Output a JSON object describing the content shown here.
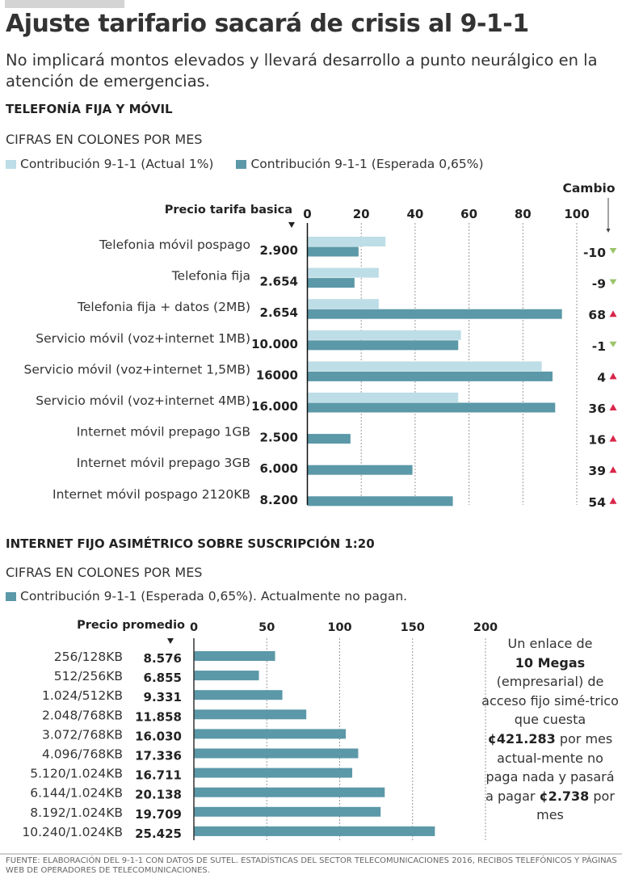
{
  "header": {
    "title": "Ajuste tarifario sacará de crisis al 9-1-1",
    "subtitle": "No implicará montos elevados y llevará desarrollo a punto neurálgico en la atención de emergencias."
  },
  "colors": {
    "actual": "#bddde7",
    "expected": "#5b98a8",
    "up": "#d9264a",
    "down": "#9cc46a"
  },
  "chart_data": [
    {
      "type": "bar",
      "title": "TELEFONÍA FIJA Y MÓVIL",
      "subtitle": "CIFRAS EN COLONES POR MES",
      "price_header": "Precio tarifa basica",
      "change_header": "Cambio",
      "xlim": [
        0,
        100
      ],
      "xticks": [
        "0",
        "20",
        "40",
        "60",
        "80",
        "100"
      ],
      "grid": true,
      "legend_position": "top-left",
      "series": [
        {
          "name": "Contribución 9-1-1 (Actual 1%)",
          "values": [
            29,
            26.5,
            26.5,
            57,
            87,
            56,
            null,
            null,
            null
          ]
        },
        {
          "name": "Contribución 9-1-1 (Esperada 0,65%)",
          "values": [
            19,
            17.5,
            94.5,
            56,
            91,
            92,
            16,
            39,
            54
          ]
        }
      ],
      "categories": [
        "Telefonia móvil pospago",
        "Telefonia fija",
        "Telefonia fija + datos (2MB)",
        "Servicio móvil (voz+internet 1MB)",
        "Servicio móvil (voz+internet 1,5MB)",
        "Servicio móvil (voz+internet 4MB)",
        "Internet móvil prepago 1GB",
        "Internet móvil  prepago 3GB",
        "Internet móvil pospago 2120KB"
      ],
      "prices": [
        "2.900",
        "2.654",
        "2.654",
        "10.000",
        "16000",
        "16.000",
        "2.500",
        "6.000",
        "8.200"
      ],
      "changes": [
        {
          "value": "-10",
          "dir": "down"
        },
        {
          "value": "-9",
          "dir": "down"
        },
        {
          "value": "68",
          "dir": "up"
        },
        {
          "value": "-1",
          "dir": "down"
        },
        {
          "value": "4",
          "dir": "up"
        },
        {
          "value": "36",
          "dir": "up"
        },
        {
          "value": "16",
          "dir": "up"
        },
        {
          "value": "39",
          "dir": "up"
        },
        {
          "value": "54",
          "dir": "up"
        }
      ]
    },
    {
      "type": "bar",
      "title": "INTERNET FIJO ASIMÉTRICO SOBRE SUSCRIPCIÓN 1:20",
      "subtitle": "CIFRAS EN COLONES POR MES",
      "price_header": "Precio promedio",
      "xlim": [
        0,
        200
      ],
      "xticks": [
        "0",
        "50",
        "100",
        "150",
        "200"
      ],
      "grid": true,
      "legend_position": "top-left",
      "series": [
        {
          "name": "Contribución 9-1-1 (Esperada 0,65%). Actualmente no pagan.",
          "values": [
            55.7,
            44.6,
            60.7,
            77.1,
            104.2,
            112.7,
            108.6,
            130.9,
            128.1,
            165.3
          ]
        }
      ],
      "categories": [
        "256/128KB",
        "512/256KB",
        "1.024/512KB",
        "2.048/768KB",
        "3.072/768KB",
        "4.096/768KB",
        "5.120/1.024KB",
        "6.144/1.024KB",
        "8.192/1.024KB",
        "10.240/1.024KB"
      ],
      "prices": [
        "8.576",
        "6.855",
        "9.331",
        "11.858",
        "16.030",
        "17.336",
        "16.711",
        "20.138",
        "19.709",
        "25.425"
      ]
    }
  ],
  "note": {
    "p1": "Un enlace de",
    "b1": "10 Megas",
    "p2": "(empresarial) de acceso fijo simé-trico que cuesta",
    "b2": "¢421.283",
    "p3": "por mes actual-mente no paga nada y pasará a pagar",
    "b3": "¢2.738",
    "p4": "por mes"
  },
  "footer": "FUENTE: ELABORACIÓN DEL 9-1-1 CON DATOS DE SUTEL. ESTADÍSTICAS DEL SECTOR TELECOMUNICACIONES 2016, RECIBOS TELEFÓNICOS Y  PÁGINAS WEB DE OPERADORES DE TELECOMUNICACIONES."
}
